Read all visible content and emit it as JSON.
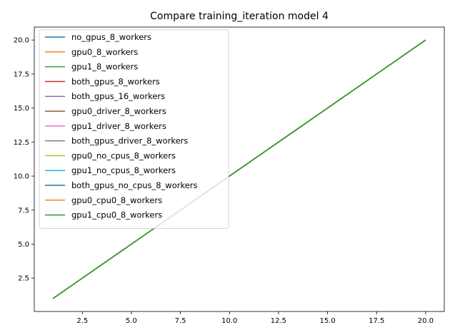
{
  "chart_data": {
    "type": "line",
    "title": "Compare training_iteration model 4",
    "xlabel": "",
    "ylabel": "",
    "xlim": [
      0.05,
      20.95
    ],
    "ylim": [
      0.05,
      20.95
    ],
    "x_ticks": [
      2.5,
      5.0,
      7.5,
      10.0,
      12.5,
      15.0,
      17.5,
      20.0
    ],
    "x_tick_labels": [
      "2.5",
      "5.0",
      "7.5",
      "10.0",
      "12.5",
      "15.0",
      "17.5",
      "20.0"
    ],
    "y_ticks": [
      2.5,
      5.0,
      7.5,
      10.0,
      12.5,
      15.0,
      17.5,
      20.0
    ],
    "y_tick_labels": [
      "2.5",
      "5.0",
      "7.5",
      "10.0",
      "12.5",
      "15.0",
      "17.5",
      "20.0"
    ],
    "grid": false,
    "legend_position": "top-left",
    "x": [
      1,
      20
    ],
    "series": [
      {
        "name": "no_gpus_8_workers",
        "color": "#1f77b4",
        "values": [
          1,
          20
        ]
      },
      {
        "name": "gpu0_8_workers",
        "color": "#ff7f0e",
        "values": [
          1,
          20
        ]
      },
      {
        "name": "gpu1_8_workers",
        "color": "#2ca02c",
        "values": [
          1,
          20
        ]
      },
      {
        "name": "both_gpus_8_workers",
        "color": "#d62728",
        "values": [
          1,
          20
        ]
      },
      {
        "name": "both_gpus_16_workers",
        "color": "#9467bd",
        "values": [
          1,
          20
        ]
      },
      {
        "name": "gpu0_driver_8_workers",
        "color": "#8c564b",
        "values": [
          1,
          20
        ]
      },
      {
        "name": "gpu1_driver_8_workers",
        "color": "#e377c2",
        "values": [
          1,
          20
        ]
      },
      {
        "name": "both_gpus_driver_8_workers",
        "color": "#7f7f7f",
        "values": [
          1,
          20
        ]
      },
      {
        "name": "gpu0_no_cpus_8_workers",
        "color": "#bcbd22",
        "values": [
          1,
          20
        ]
      },
      {
        "name": "gpu1_no_cpus_8_workers",
        "color": "#17becf",
        "values": [
          1,
          20
        ]
      },
      {
        "name": "both_gpus_no_cpus_8_workers",
        "color": "#1f77b4",
        "values": [
          1,
          20
        ]
      },
      {
        "name": "gpu0_cpu0_8_workers",
        "color": "#ff7f0e",
        "values": [
          1,
          20
        ]
      },
      {
        "name": "gpu1_cpu0_8_workers",
        "color": "#2ca02c",
        "values": [
          1,
          20
        ]
      }
    ]
  }
}
